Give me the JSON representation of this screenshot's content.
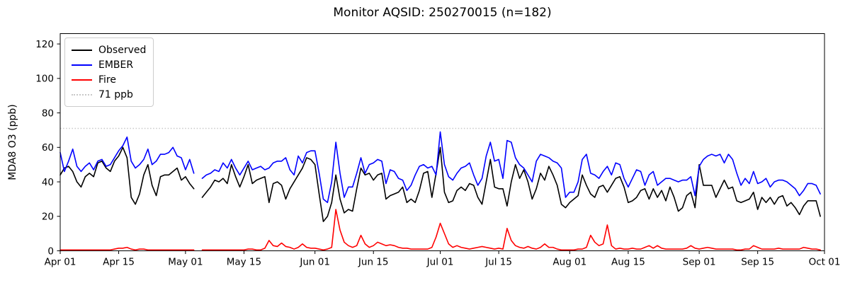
{
  "title": "Monitor AQSID: 250270015 (n=182)",
  "chart_data": {
    "type": "line",
    "title": "Monitor AQSID: 250270015 (n=182)",
    "xlabel": "",
    "ylabel": "MDA8 O3 (ppb)",
    "x_unit": "days since Apr 01",
    "x_range": [
      0,
      183
    ],
    "ylim": [
      0,
      126
    ],
    "yticks": [
      0,
      20,
      40,
      60,
      80,
      100,
      120
    ],
    "xticks": [
      {
        "day": 0,
        "label": "Apr 01"
      },
      {
        "day": 14,
        "label": "Apr 15"
      },
      {
        "day": 30,
        "label": "May 01"
      },
      {
        "day": 44,
        "label": "May 15"
      },
      {
        "day": 61,
        "label": "Jun 01"
      },
      {
        "day": 75,
        "label": "Jun 15"
      },
      {
        "day": 91,
        "label": "Jul 01"
      },
      {
        "day": 105,
        "label": "Jul 15"
      },
      {
        "day": 122,
        "label": "Aug 01"
      },
      {
        "day": 136,
        "label": "Aug 15"
      },
      {
        "day": 153,
        "label": "Sep 01"
      },
      {
        "day": 167,
        "label": "Sep 15"
      },
      {
        "day": 183,
        "label": "Oct 01"
      }
    ],
    "grid": false,
    "legend_position": "upper left",
    "threshold": {
      "value": 71,
      "label": "71 ppb",
      "color": "#c8c8c8"
    },
    "note": "daily values Apr 01 - Sep 30; null = missing day (May 04), n=182",
    "series": [
      {
        "name": "Observed",
        "color": "#000000",
        "values": [
          44,
          48,
          49,
          46,
          40,
          37,
          43,
          45,
          43,
          51,
          52,
          48,
          46,
          52,
          55,
          60,
          54,
          31,
          27,
          33,
          44,
          50,
          38,
          32,
          43,
          44,
          44,
          46,
          48,
          41,
          43,
          39,
          36,
          null,
          31,
          34,
          37,
          41,
          40,
          42,
          39,
          50,
          43,
          37,
          43,
          50,
          39,
          41,
          42,
          43,
          28,
          39,
          40,
          38,
          30,
          36,
          40,
          44,
          48,
          54,
          53,
          50,
          33,
          17,
          20,
          28,
          44,
          30,
          22,
          24,
          23,
          36,
          48,
          44,
          45,
          41,
          44,
          45,
          30,
          32,
          33,
          34,
          37,
          28,
          30,
          28,
          35,
          45,
          46,
          31,
          45,
          60,
          34,
          28,
          29,
          35,
          37,
          35,
          39,
          38,
          31,
          27,
          40,
          53,
          37,
          36,
          36,
          26,
          40,
          50,
          42,
          47,
          40,
          30,
          36,
          45,
          41,
          49,
          44,
          38,
          27,
          25,
          28,
          30,
          32,
          44,
          38,
          33,
          31,
          37,
          38,
          34,
          38,
          42,
          43,
          37,
          28,
          29,
          31,
          35,
          36,
          30,
          36,
          31,
          35,
          29,
          37,
          31,
          23,
          25,
          32,
          34,
          25,
          50,
          38,
          38,
          38,
          31,
          36,
          41,
          36,
          37,
          29,
          28,
          29,
          30,
          34,
          24,
          31,
          28,
          31,
          27,
          31,
          32,
          26,
          28,
          25,
          21,
          26,
          29,
          29,
          29,
          20
        ]
      },
      {
        "name": "EMBER",
        "color": "#0000ff",
        "values": [
          57,
          46,
          52,
          59,
          49,
          46,
          49,
          51,
          47,
          52,
          53,
          49,
          50,
          54,
          58,
          61,
          66,
          52,
          48,
          50,
          53,
          59,
          50,
          52,
          56,
          56,
          57,
          60,
          55,
          54,
          47,
          53,
          45,
          null,
          42,
          44,
          45,
          47,
          46,
          51,
          48,
          53,
          48,
          44,
          48,
          52,
          47,
          48,
          49,
          47,
          48,
          51,
          52,
          52,
          54,
          47,
          44,
          55,
          51,
          57,
          58,
          58,
          45,
          30,
          28,
          40,
          63,
          45,
          31,
          37,
          37,
          45,
          54,
          45,
          50,
          51,
          53,
          52,
          39,
          47,
          46,
          42,
          41,
          35,
          38,
          44,
          49,
          50,
          48,
          49,
          44,
          69,
          50,
          43,
          41,
          45,
          48,
          49,
          51,
          44,
          38,
          42,
          55,
          63,
          52,
          53,
          42,
          64,
          63,
          54,
          50,
          48,
          44,
          40,
          52,
          56,
          55,
          54,
          52,
          51,
          48,
          31,
          34,
          34,
          40,
          53,
          56,
          45,
          44,
          42,
          46,
          49,
          44,
          51,
          50,
          42,
          37,
          42,
          47,
          46,
          38,
          44,
          46,
          38,
          40,
          42,
          42,
          41,
          40,
          41,
          41,
          43,
          32,
          49,
          53,
          55,
          56,
          55,
          56,
          51,
          56,
          53,
          45,
          38,
          42,
          39,
          46,
          39,
          40,
          42,
          37,
          40,
          41,
          41,
          40,
          38,
          36,
          32,
          35,
          39,
          39,
          38,
          33
        ]
      },
      {
        "name": "Fire",
        "color": "#ff0000",
        "values": [
          0.5,
          0.5,
          0.5,
          0.5,
          0.5,
          0.5,
          0.5,
          0.5,
          0.5,
          0.5,
          0.5,
          0.5,
          0.5,
          1,
          1.5,
          1.5,
          2,
          1,
          0.5,
          1,
          1,
          0.5,
          0.5,
          0.5,
          0.5,
          0.5,
          0.5,
          0.5,
          0.5,
          0.5,
          0.5,
          0.5,
          0.5,
          null,
          0.5,
          0.5,
          0.5,
          0.5,
          0.5,
          0.5,
          0.5,
          0.5,
          0.5,
          0.5,
          0.5,
          1,
          1,
          0.5,
          0.5,
          1.5,
          6,
          3,
          2.5,
          4.5,
          2.5,
          2,
          1,
          2,
          4,
          2,
          1.5,
          1.5,
          1,
          0.5,
          1,
          2,
          24,
          12,
          5,
          3,
          2,
          3,
          9,
          4,
          2,
          3,
          5,
          4,
          3,
          3.5,
          3,
          2,
          1.5,
          1.5,
          1,
          1,
          1,
          1,
          1,
          2,
          8,
          16,
          10,
          4,
          2,
          3,
          2,
          1.5,
          1,
          1.5,
          2,
          2.5,
          2,
          1.5,
          1,
          1.5,
          1,
          13,
          6,
          3,
          2,
          1.5,
          2.5,
          1.5,
          1,
          2,
          4,
          2,
          2,
          1,
          0.5,
          0.5,
          0.5,
          0.5,
          1,
          1,
          2,
          9,
          5,
          3,
          4,
          15,
          3,
          1,
          1.5,
          1,
          1,
          1.5,
          1,
          1,
          2,
          3,
          1.5,
          3,
          1.5,
          1,
          1,
          1,
          1,
          1,
          1.5,
          3,
          1.5,
          1,
          1.5,
          2,
          1.5,
          1,
          1,
          1,
          1,
          1,
          0.5,
          0.5,
          1,
          1,
          3,
          2,
          1,
          1,
          1,
          1,
          1.5,
          1,
          1,
          1,
          1,
          1,
          2,
          1.5,
          1,
          1,
          0.5
        ]
      }
    ]
  }
}
